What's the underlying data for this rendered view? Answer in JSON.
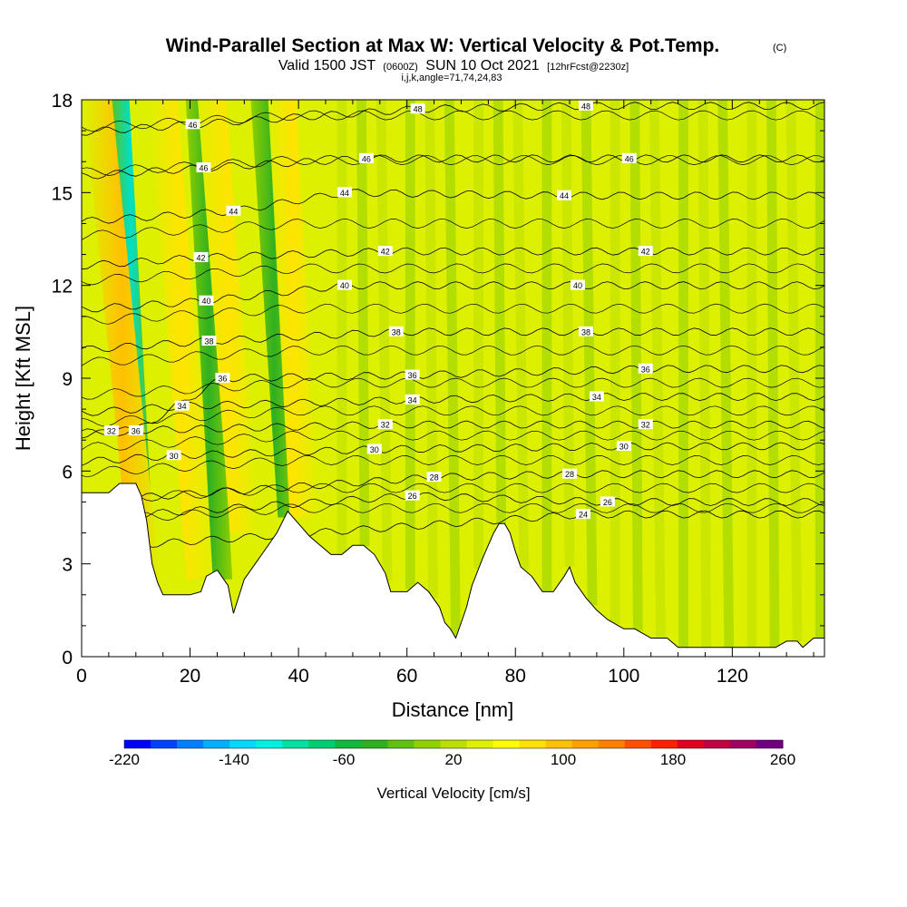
{
  "chart_data": {
    "type": "heatmap",
    "title": "Wind-Parallel Section at Max W: Vertical Velocity & Pot.Temp.",
    "title_mark": "(C)",
    "subtitle": {
      "valid_prefix": "Valid 1500 JST",
      "valid_utc": "(0600Z)",
      "valid_date": "SUN 10 Oct 2021",
      "forecast": "[12hrFcst@2230z]"
    },
    "indices_line": "i,j,k,angle=71,74,24,83",
    "xlabel": "Distance [nm]",
    "ylabel": "Height [Kft MSL]",
    "xlim": [
      0,
      137
    ],
    "ylim": [
      0,
      18
    ],
    "x_ticks": [
      0,
      20,
      40,
      60,
      80,
      100,
      120
    ],
    "x_minor_step": 5,
    "y_ticks": [
      0,
      3,
      6,
      9,
      12,
      15,
      18
    ],
    "y_minor_step": 1,
    "terrain": {
      "x": [
        0,
        5,
        7,
        10,
        11,
        12,
        13,
        14,
        15,
        17,
        20,
        22,
        23,
        25,
        27,
        28,
        30,
        32,
        34,
        36,
        38,
        40,
        42,
        44,
        46,
        48,
        50,
        52,
        54,
        56,
        57,
        58,
        60,
        62,
        64,
        66,
        67,
        68,
        69,
        70,
        71,
        72,
        74,
        76,
        77,
        78,
        79,
        80,
        81,
        83,
        85,
        87,
        89,
        90,
        91,
        93,
        95,
        97,
        99,
        100,
        102,
        105,
        108,
        110,
        112,
        115,
        120,
        125,
        128,
        130,
        132,
        133,
        135,
        137
      ],
      "height": [
        5.3,
        5.3,
        5.6,
        5.6,
        5.2,
        4.4,
        3.0,
        2.4,
        2.0,
        2.0,
        2.0,
        2.1,
        2.6,
        2.8,
        2.3,
        1.4,
        2.5,
        3.0,
        3.5,
        4.0,
        4.7,
        4.3,
        3.9,
        3.6,
        3.3,
        3.3,
        3.6,
        3.6,
        3.3,
        2.7,
        2.1,
        2.1,
        2.1,
        2.4,
        2.1,
        1.6,
        1.1,
        0.9,
        0.6,
        1.1,
        1.6,
        2.3,
        3.2,
        4.0,
        4.3,
        4.3,
        4.0,
        3.4,
        2.9,
        2.6,
        2.1,
        2.1,
        2.6,
        2.9,
        2.4,
        1.9,
        1.5,
        1.2,
        1.0,
        0.9,
        0.9,
        0.6,
        0.6,
        0.3,
        0.3,
        0.3,
        0.3,
        0.3,
        0.3,
        0.5,
        0.5,
        0.3,
        0.6,
        0.6
      ]
    },
    "vertical_velocity_features": [
      {
        "kind": "downdraft",
        "x_base": 11,
        "x_top": 7,
        "z_base": 5.0,
        "z_top": 18,
        "min_cm_s": -150
      },
      {
        "kind": "updraft",
        "x_base": 12,
        "x_top": 3,
        "z_base": 2.0,
        "z_top": 18,
        "max_cm_s": 120
      },
      {
        "kind": "updraft",
        "x_base": 22,
        "x_top": 15,
        "z_base": 2.5,
        "z_top": 18,
        "max_cm_s": 40
      },
      {
        "kind": "downdraft",
        "x_base": 26,
        "x_top": 21,
        "z_base": 2.5,
        "z_top": 18,
        "min_cm_s": -40
      },
      {
        "kind": "updraft",
        "x_base": 30,
        "x_top": 24,
        "z_base": 4.0,
        "z_top": 18,
        "max_cm_s": 40
      },
      {
        "kind": "downdraft",
        "x_base": 38,
        "x_top": 33,
        "z_base": 4.5,
        "z_top": 18,
        "min_cm_s": -50
      },
      {
        "kind": "updraft",
        "x_base": 41,
        "x_top": 37,
        "z_base": 4.5,
        "z_top": 18,
        "max_cm_s": 60
      }
    ],
    "potential_temperature_contours": [
      {
        "value": 24,
        "label_x": 92.5,
        "z": 4.6
      },
      {
        "value": 26,
        "label_x": 61,
        "z": 5.2
      },
      {
        "value": 26,
        "label_x": 97,
        "z": 5.0
      },
      {
        "value": 28,
        "label_x": 65,
        "z": 5.8
      },
      {
        "value": 28,
        "label_x": 90,
        "z": 5.9
      },
      {
        "value": 30,
        "label_x": 17,
        "z": 6.5
      },
      {
        "value": 30,
        "label_x": 54,
        "z": 6.7
      },
      {
        "value": 30,
        "label_x": 100,
        "z": 6.8
      },
      {
        "value": 32,
        "label_x": 5.5,
        "z": 7.3
      },
      {
        "value": 32,
        "label_x": 56,
        "z": 7.5
      },
      {
        "value": 32,
        "label_x": 104,
        "z": 7.5
      },
      {
        "value": 34,
        "label_x": 18.5,
        "z": 8.1
      },
      {
        "value": 34,
        "label_x": 61,
        "z": 8.3
      },
      {
        "value": 34,
        "label_x": 95,
        "z": 8.4
      },
      {
        "value": 36,
        "label_x": 10,
        "z": 7.3
      },
      {
        "value": 36,
        "label_x": 26,
        "z": 9.0
      },
      {
        "value": 36,
        "label_x": 61,
        "z": 9.1
      },
      {
        "value": 36,
        "label_x": 104,
        "z": 9.3
      },
      {
        "value": 38,
        "label_x": 23.5,
        "z": 10.2
      },
      {
        "value": 38,
        "label_x": 58,
        "z": 10.5
      },
      {
        "value": 38,
        "label_x": 93,
        "z": 10.5
      },
      {
        "value": 40,
        "label_x": 23,
        "z": 11.5
      },
      {
        "value": 40,
        "label_x": 48.5,
        "z": 12.0
      },
      {
        "value": 40,
        "label_x": 91.5,
        "z": 12.0
      },
      {
        "value": 42,
        "label_x": 22,
        "z": 12.9
      },
      {
        "value": 42,
        "label_x": 56,
        "z": 13.1
      },
      {
        "value": 42,
        "label_x": 104,
        "z": 13.1
      },
      {
        "value": 44,
        "label_x": 28,
        "z": 14.4
      },
      {
        "value": 44,
        "label_x": 48.5,
        "z": 15.0
      },
      {
        "value": 44,
        "label_x": 89,
        "z": 14.9
      },
      {
        "value": 46,
        "label_x": 22.5,
        "z": 15.8
      },
      {
        "value": 46,
        "label_x": 52.5,
        "z": 16.1
      },
      {
        "value": 46,
        "label_x": 101,
        "z": 16.1
      },
      {
        "value": 46,
        "label_x": 20.5,
        "z": 17.2
      },
      {
        "value": 48,
        "label_x": 62,
        "z": 17.7
      },
      {
        "value": 48,
        "label_x": 93,
        "z": 17.8
      }
    ],
    "colorbar": {
      "title": "Vertical Velocity [cm/s]",
      "min": -220,
      "max": 260,
      "step": 20,
      "tick_labels": [
        "-220",
        "-140",
        "-60",
        "20",
        "100",
        "180",
        "260"
      ],
      "colors": [
        "#0000ff",
        "#0040ff",
        "#0080ff",
        "#00b0ff",
        "#00d8ff",
        "#00f0e0",
        "#00e0a0",
        "#00cc70",
        "#10b840",
        "#30b020",
        "#60c010",
        "#90d000",
        "#bbe000",
        "#ddf000",
        "#ffff00",
        "#ffe000",
        "#ffc000",
        "#ffa000",
        "#ff8000",
        "#ff5000",
        "#ff2000",
        "#e00020",
        "#c00040",
        "#a00060",
        "#700080"
      ]
    }
  }
}
